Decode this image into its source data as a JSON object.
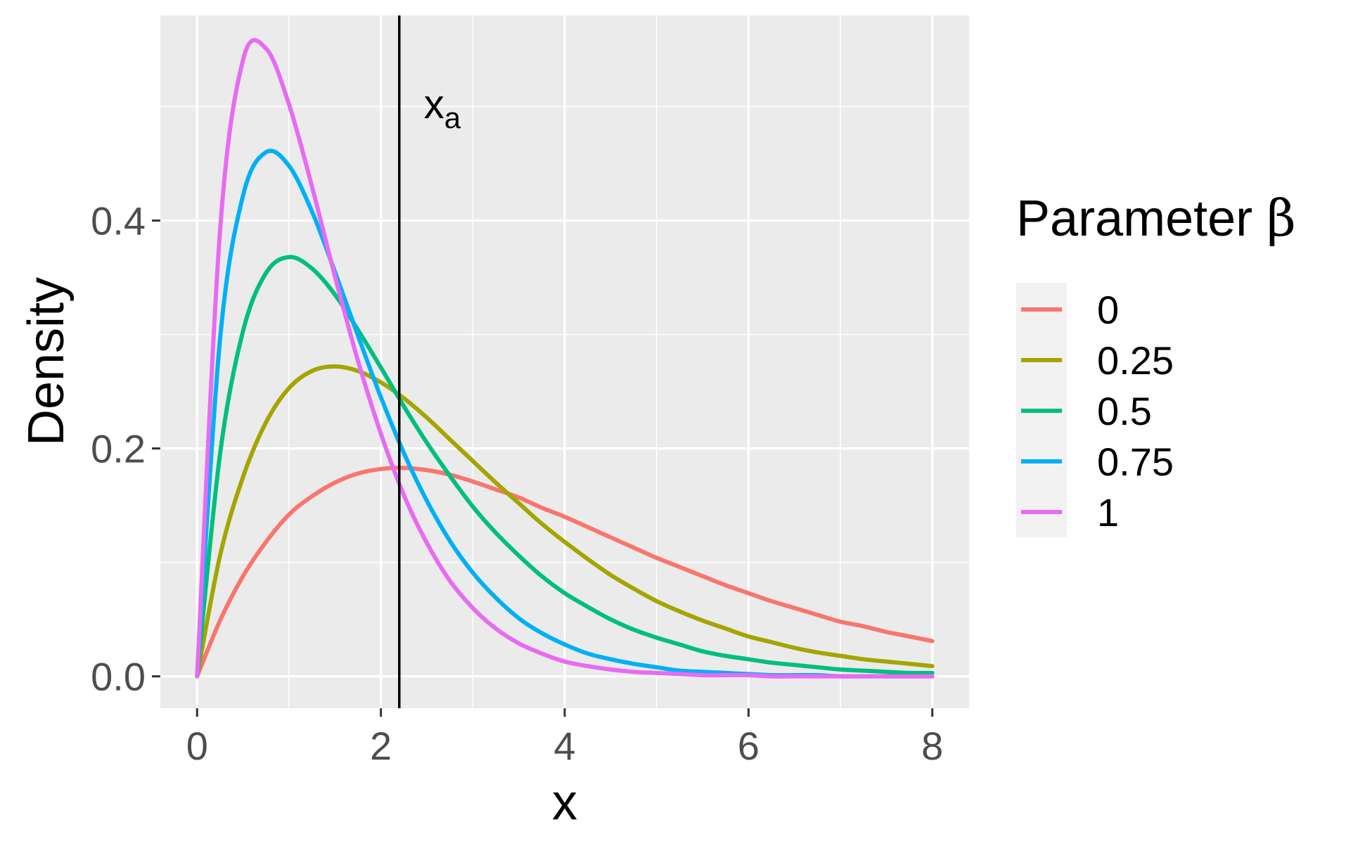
{
  "chart_data": {
    "type": "line",
    "title": "",
    "xlabel": "x",
    "ylabel": "Density",
    "xlim": [
      -0.4,
      8.4
    ],
    "ylim": [
      -0.028,
      0.58
    ],
    "x_ticks": [
      0,
      2,
      4,
      6,
      8
    ],
    "x_tick_labels": [
      "0",
      "2",
      "4",
      "6",
      "8"
    ],
    "y_ticks": [
      0.0,
      0.2,
      0.4
    ],
    "y_tick_labels": [
      "0.0",
      "0.2",
      "0.4"
    ],
    "grid": true,
    "panel_background": "#ebebeb",
    "grid_color": "#ffffff",
    "legend": {
      "title_main": "Parameter ",
      "title_symbol": "β",
      "placement": "right"
    },
    "vline": {
      "x": 2.2,
      "color": "#000000",
      "label_main": "x",
      "label_sub": "a"
    },
    "x": [
      0,
      0.25,
      0.5,
      0.75,
      1,
      1.25,
      1.5,
      1.75,
      2,
      2.25,
      2.5,
      2.75,
      3,
      3.25,
      3.5,
      3.75,
      4,
      4.25,
      4.5,
      4.75,
      5,
      5.25,
      5.5,
      5.75,
      6,
      6.25,
      6.5,
      6.75,
      7,
      7.25,
      7.5,
      7.75,
      8
    ],
    "series": [
      {
        "name": "0",
        "color": "#f8766d",
        "values": [
          0,
          0.049,
          0.088,
          0.118,
          0.142,
          0.158,
          0.17,
          0.178,
          0.182,
          0.183,
          0.181,
          0.177,
          0.171,
          0.164,
          0.157,
          0.148,
          0.14,
          0.131,
          0.122,
          0.113,
          0.104,
          0.096,
          0.088,
          0.08,
          0.073,
          0.066,
          0.06,
          0.054,
          0.048,
          0.044,
          0.039,
          0.035,
          0.031
        ]
      },
      {
        "name": "0.25",
        "color": "#a3a500",
        "values": [
          0,
          0.106,
          0.175,
          0.223,
          0.253,
          0.268,
          0.272,
          0.268,
          0.258,
          0.244,
          0.227,
          0.208,
          0.189,
          0.17,
          0.152,
          0.134,
          0.118,
          0.103,
          0.089,
          0.077,
          0.066,
          0.057,
          0.049,
          0.042,
          0.035,
          0.03,
          0.025,
          0.021,
          0.018,
          0.015,
          0.013,
          0.011,
          0.009
        ]
      },
      {
        "name": "0.5",
        "color": "#00bf7d",
        "values": [
          0,
          0.195,
          0.303,
          0.354,
          0.368,
          0.358,
          0.335,
          0.304,
          0.271,
          0.237,
          0.205,
          0.176,
          0.149,
          0.126,
          0.106,
          0.088,
          0.073,
          0.061,
          0.05,
          0.041,
          0.034,
          0.028,
          0.022,
          0.018,
          0.015,
          0.012,
          0.01,
          0.008,
          0.006,
          0.005,
          0.004,
          0.003,
          0.003
        ]
      },
      {
        "name": "0.75",
        "color": "#00b0f6",
        "values": [
          0,
          0.296,
          0.422,
          0.46,
          0.448,
          0.408,
          0.355,
          0.299,
          0.245,
          0.196,
          0.154,
          0.119,
          0.091,
          0.069,
          0.051,
          0.038,
          0.028,
          0.02,
          0.015,
          0.011,
          0.008,
          0.005,
          0.004,
          0.003,
          0.002,
          0.001,
          0.001,
          0.001,
          0.0,
          0.0,
          0.0,
          0.0,
          0.0
        ]
      },
      {
        "name": "1",
        "color": "#e76bf3",
        "values": [
          0,
          0.391,
          0.541,
          0.551,
          0.502,
          0.43,
          0.351,
          0.277,
          0.213,
          0.159,
          0.117,
          0.084,
          0.06,
          0.042,
          0.029,
          0.02,
          0.013,
          0.009,
          0.006,
          0.004,
          0.003,
          0.002,
          0.001,
          0.001,
          0.001,
          0.0,
          0.0,
          0.0,
          0.0,
          0.0,
          0.0,
          0.0,
          0.0
        ]
      }
    ]
  }
}
